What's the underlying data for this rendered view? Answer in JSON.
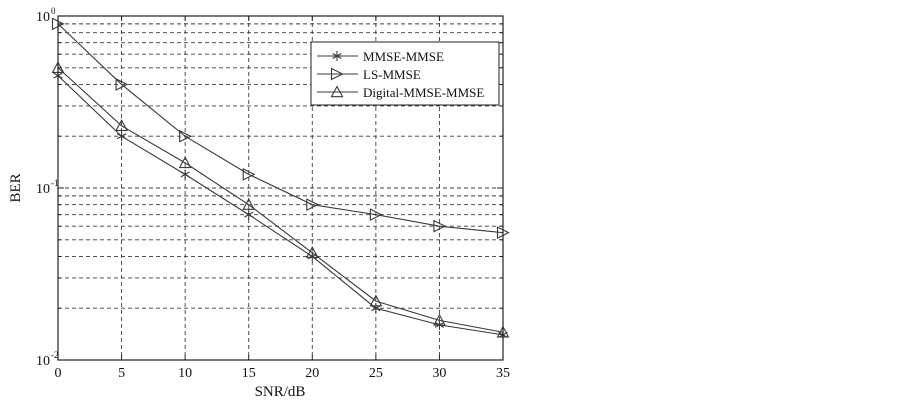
{
  "chart_data": {
    "type": "line",
    "title": "",
    "xlabel": "SNR/dB",
    "ylabel": "BER",
    "xlim": [
      0,
      35
    ],
    "ylim": [
      0.01,
      1
    ],
    "yscale": "log",
    "grid": true,
    "legend_position": "top-right",
    "x": [
      0,
      5,
      10,
      15,
      20,
      25,
      30,
      35
    ],
    "x_tick_labels": [
      "0",
      "5",
      "10",
      "15",
      "20",
      "25",
      "30",
      "35"
    ],
    "y_tick_labels": [
      {
        "base": "10",
        "exp": "0",
        "value": 1
      },
      {
        "base": "10",
        "exp": "-1",
        "value": 0.1
      },
      {
        "base": "10",
        "exp": "-2",
        "value": 0.01
      }
    ],
    "series": [
      {
        "name": "MMSE-MMSE",
        "marker": "asterisk",
        "values": [
          0.45,
          0.2,
          0.12,
          0.07,
          0.04,
          0.02,
          0.016,
          0.014
        ]
      },
      {
        "name": "LS-MMSE",
        "marker": "triangle-right",
        "values": [
          0.9,
          0.4,
          0.2,
          0.12,
          0.08,
          0.07,
          0.06,
          0.055
        ]
      },
      {
        "name": "Digital-MMSE-MMSE",
        "marker": "triangle-up",
        "values": [
          0.5,
          0.23,
          0.14,
          0.08,
          0.042,
          0.022,
          0.017,
          0.0145
        ]
      }
    ],
    "colors": {
      "line": "#3a3a3a",
      "grid": "#3c3c3c",
      "axis": "#222222"
    }
  }
}
